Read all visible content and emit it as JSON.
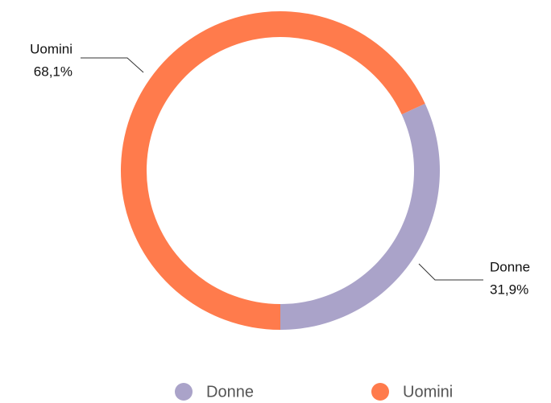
{
  "chart_data": {
    "type": "donut",
    "categories": [
      "Donne",
      "Uomini"
    ],
    "values": [
      31.9,
      68.1
    ],
    "value_labels": [
      "31,9%",
      "68,1%"
    ],
    "colors": [
      "#aaa3c9",
      "#ff7b4c"
    ],
    "legend": "bottom"
  }
}
